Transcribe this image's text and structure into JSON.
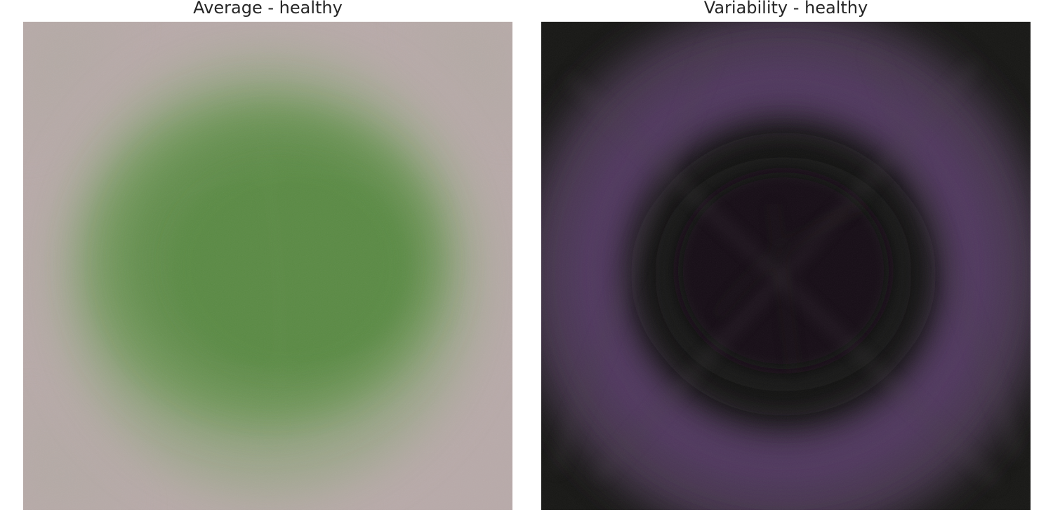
{
  "panels": [
    {
      "title": "Average - healthy",
      "image": "average healthy leaf composite",
      "colors": {
        "background": "#b7a9a8",
        "center": "#5e8c48"
      }
    },
    {
      "title": "Variability - healthy",
      "image": "variability healthy leaf composite",
      "colors": {
        "background": "#161614",
        "ring": "#5a3a6e"
      }
    }
  ]
}
